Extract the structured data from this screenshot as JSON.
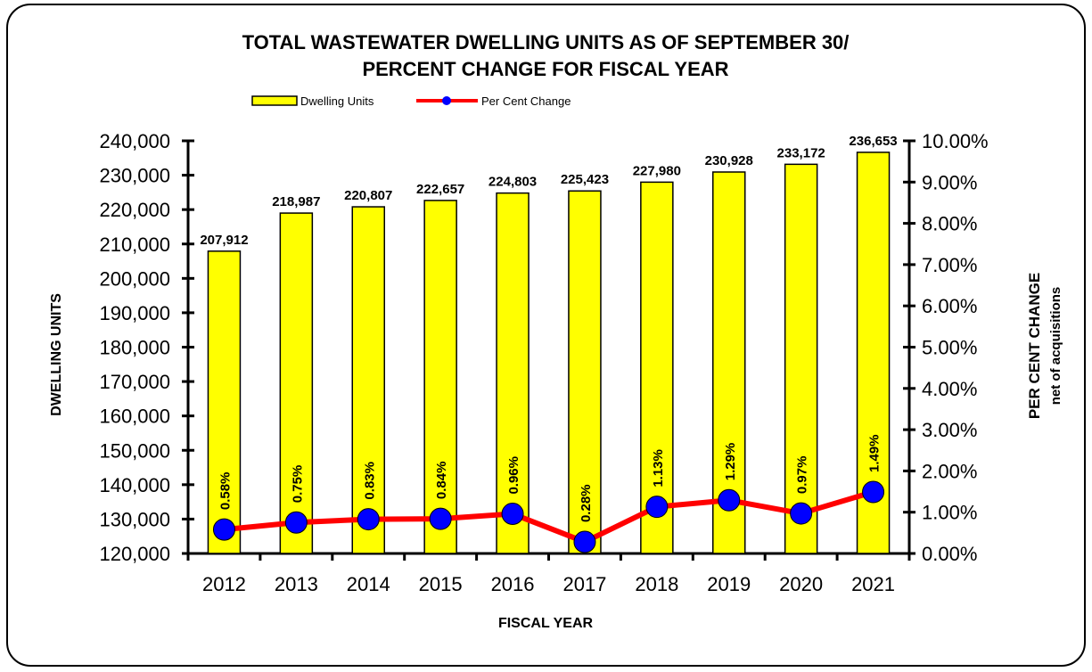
{
  "chart_data": {
    "type": "bar_line",
    "title": [
      "TOTAL WASTEWATER DWELLING UNITS AS OF SEPTEMBER 30/",
      "PERCENT CHANGE FOR FISCAL YEAR"
    ],
    "xlabel": "FISCAL YEAR",
    "ylabel": "DWELLING UNITS",
    "y2label": "PER CENT CHANGE",
    "y2label_note": "net of acquisitions",
    "categories": [
      "2012",
      "2013",
      "2014",
      "2015",
      "2016",
      "2017",
      "2018",
      "2019",
      "2020",
      "2021"
    ],
    "series": [
      {
        "name": "Dwelling Units",
        "type": "bar",
        "color": "#ffff00",
        "values": [
          207912,
          218987,
          220807,
          222657,
          224803,
          225423,
          227980,
          230928,
          233172,
          236653
        ],
        "value_labels": [
          "207,912",
          "218,987",
          "220,807",
          "222,657",
          "224,803",
          "225,423",
          "227,980",
          "230,928",
          "233,172",
          "236,653"
        ]
      },
      {
        "name": "Per Cent Change",
        "type": "line",
        "axis": "y2",
        "color": "#ff0000",
        "marker_color": "#0000ff",
        "values": [
          0.58,
          0.75,
          0.83,
          0.84,
          0.96,
          0.28,
          1.13,
          1.29,
          0.97,
          1.49
        ],
        "value_labels": [
          "0.58%",
          "0.75%",
          "0.83%",
          "0.84%",
          "0.96%",
          "0.28%",
          "1.13%",
          "1.29%",
          "0.97%",
          "1.49%"
        ]
      }
    ],
    "ylim": [
      120000,
      240000
    ],
    "yticks": [
      {
        "value": 120000,
        "label": "120,000"
      },
      {
        "value": 130000,
        "label": "130,000"
      },
      {
        "value": 140000,
        "label": "140,000"
      },
      {
        "value": 150000,
        "label": "150,000"
      },
      {
        "value": 160000,
        "label": "160,000"
      },
      {
        "value": 170000,
        "label": "170,000"
      },
      {
        "value": 180000,
        "label": "180,000"
      },
      {
        "value": 190000,
        "label": "190,000"
      },
      {
        "value": 200000,
        "label": "200,000"
      },
      {
        "value": 210000,
        "label": "210,000"
      },
      {
        "value": 220000,
        "label": "220,000"
      },
      {
        "value": 230000,
        "label": "230,000"
      },
      {
        "value": 240000,
        "label": "240,000"
      }
    ],
    "y2lim": [
      0,
      10
    ],
    "y2ticks": [
      {
        "value": 0,
        "label": "0.00%"
      },
      {
        "value": 1,
        "label": "1.00%"
      },
      {
        "value": 2,
        "label": "2.00%"
      },
      {
        "value": 3,
        "label": "3.00%"
      },
      {
        "value": 4,
        "label": "4.00%"
      },
      {
        "value": 5,
        "label": "5.00%"
      },
      {
        "value": 6,
        "label": "6.00%"
      },
      {
        "value": 7,
        "label": "7.00%"
      },
      {
        "value": 8,
        "label": "8.00%"
      },
      {
        "value": 9,
        "label": "9.00%"
      },
      {
        "value": 10,
        "label": "10.00%"
      }
    ],
    "grid": false,
    "legend": "top"
  }
}
